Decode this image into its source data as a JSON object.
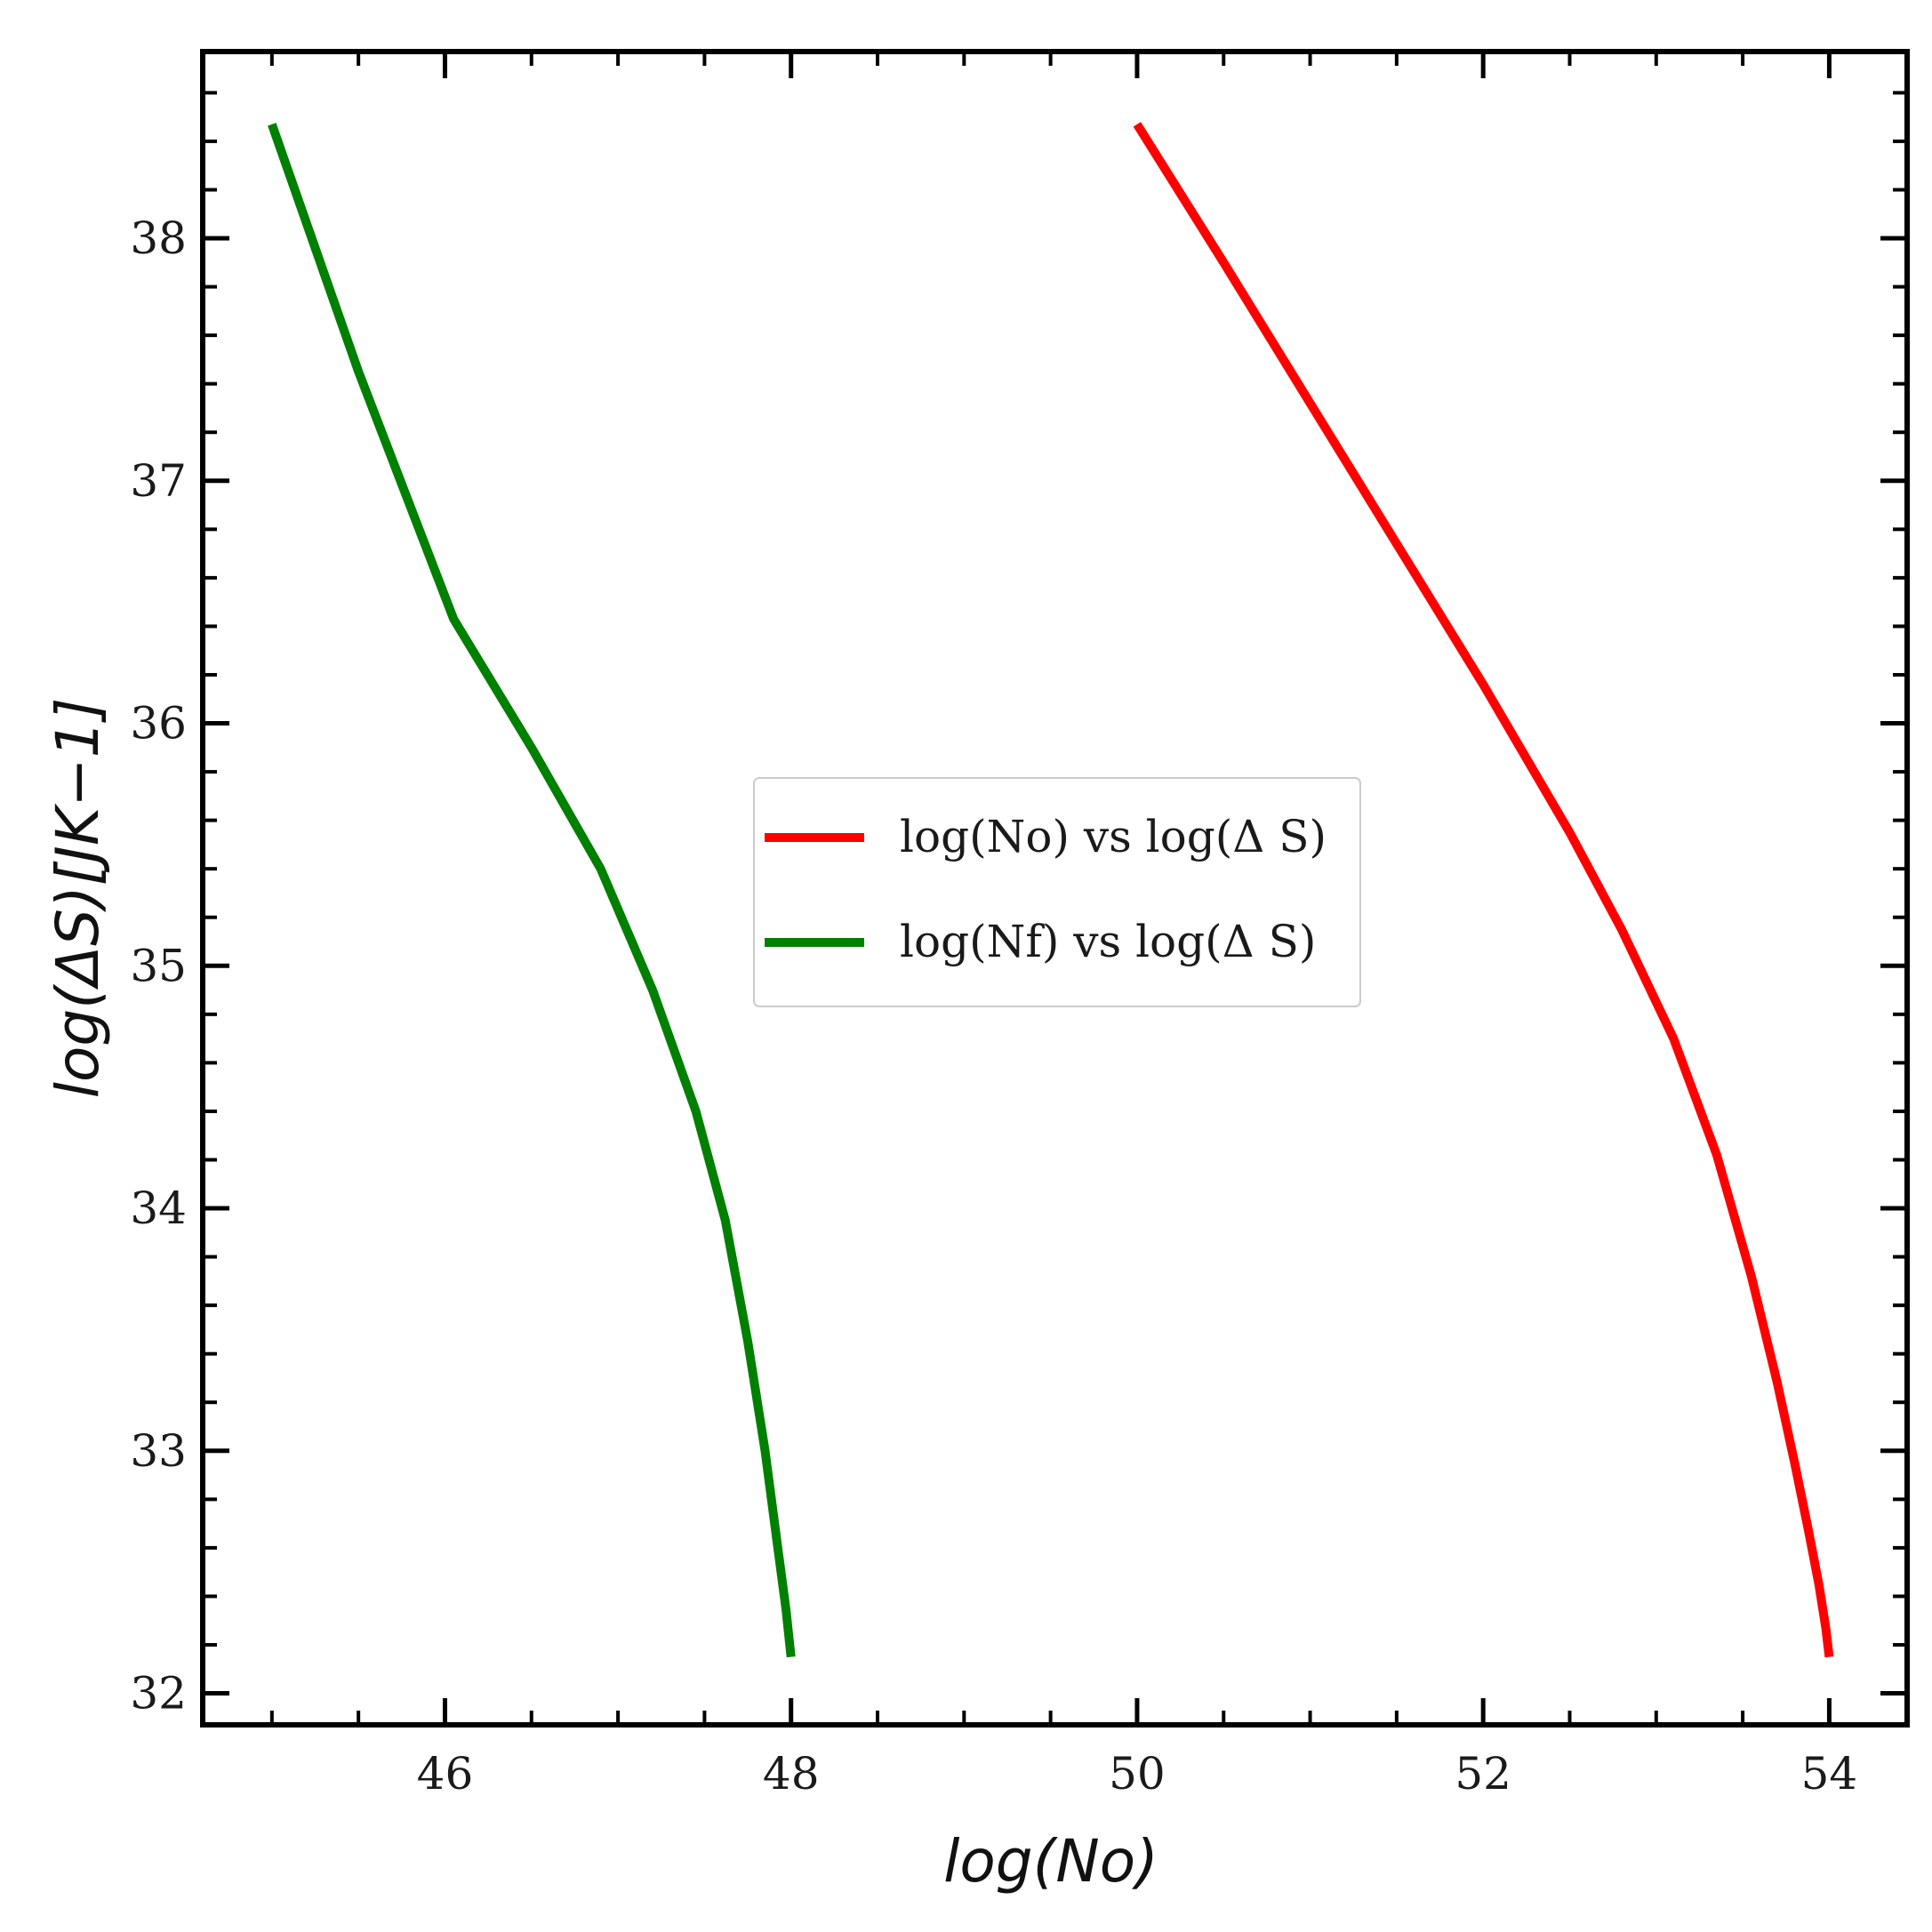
{
  "chart_data": {
    "type": "line",
    "xlabel": "log(No)",
    "ylabel": "log(ΔS)[JK−1]",
    "xlim": [
      44.6,
      54.45
    ],
    "ylim": [
      31.87,
      38.77
    ],
    "xticks": [
      46,
      48,
      50,
      52,
      54
    ],
    "xtick_labels": [
      "46",
      "48",
      "50",
      "52",
      "54"
    ],
    "yticks": [
      32,
      33,
      34,
      35,
      36,
      37,
      38
    ],
    "ytick_labels": [
      "32",
      "33",
      "34",
      "35",
      "36",
      "37",
      "38"
    ],
    "grid": false,
    "legend_position": "center",
    "series": [
      {
        "name": "log(No) vs log(Δ S)",
        "color": "#ff0000",
        "x": [
          50.0,
          50.5,
          51.0,
          51.5,
          52.0,
          52.5,
          52.8,
          53.1,
          53.35,
          53.55,
          53.7,
          53.8,
          53.88,
          53.94,
          53.98,
          54.0
        ],
        "y": [
          38.47,
          37.9,
          37.32,
          36.74,
          36.16,
          35.55,
          35.15,
          34.7,
          34.22,
          33.72,
          33.28,
          32.95,
          32.67,
          32.45,
          32.27,
          32.15
        ]
      },
      {
        "name": "log(Nf) vs log(Δ S)",
        "color": "#008000",
        "x": [
          45.0,
          45.5,
          46.05,
          46.5,
          46.9,
          47.2,
          47.45,
          47.62,
          47.75,
          47.85,
          47.92,
          47.97,
          48.0
        ],
        "y": [
          38.47,
          37.45,
          36.43,
          35.9,
          35.4,
          34.9,
          34.4,
          33.95,
          33.45,
          33.0,
          32.62,
          32.35,
          32.15
        ]
      }
    ]
  }
}
